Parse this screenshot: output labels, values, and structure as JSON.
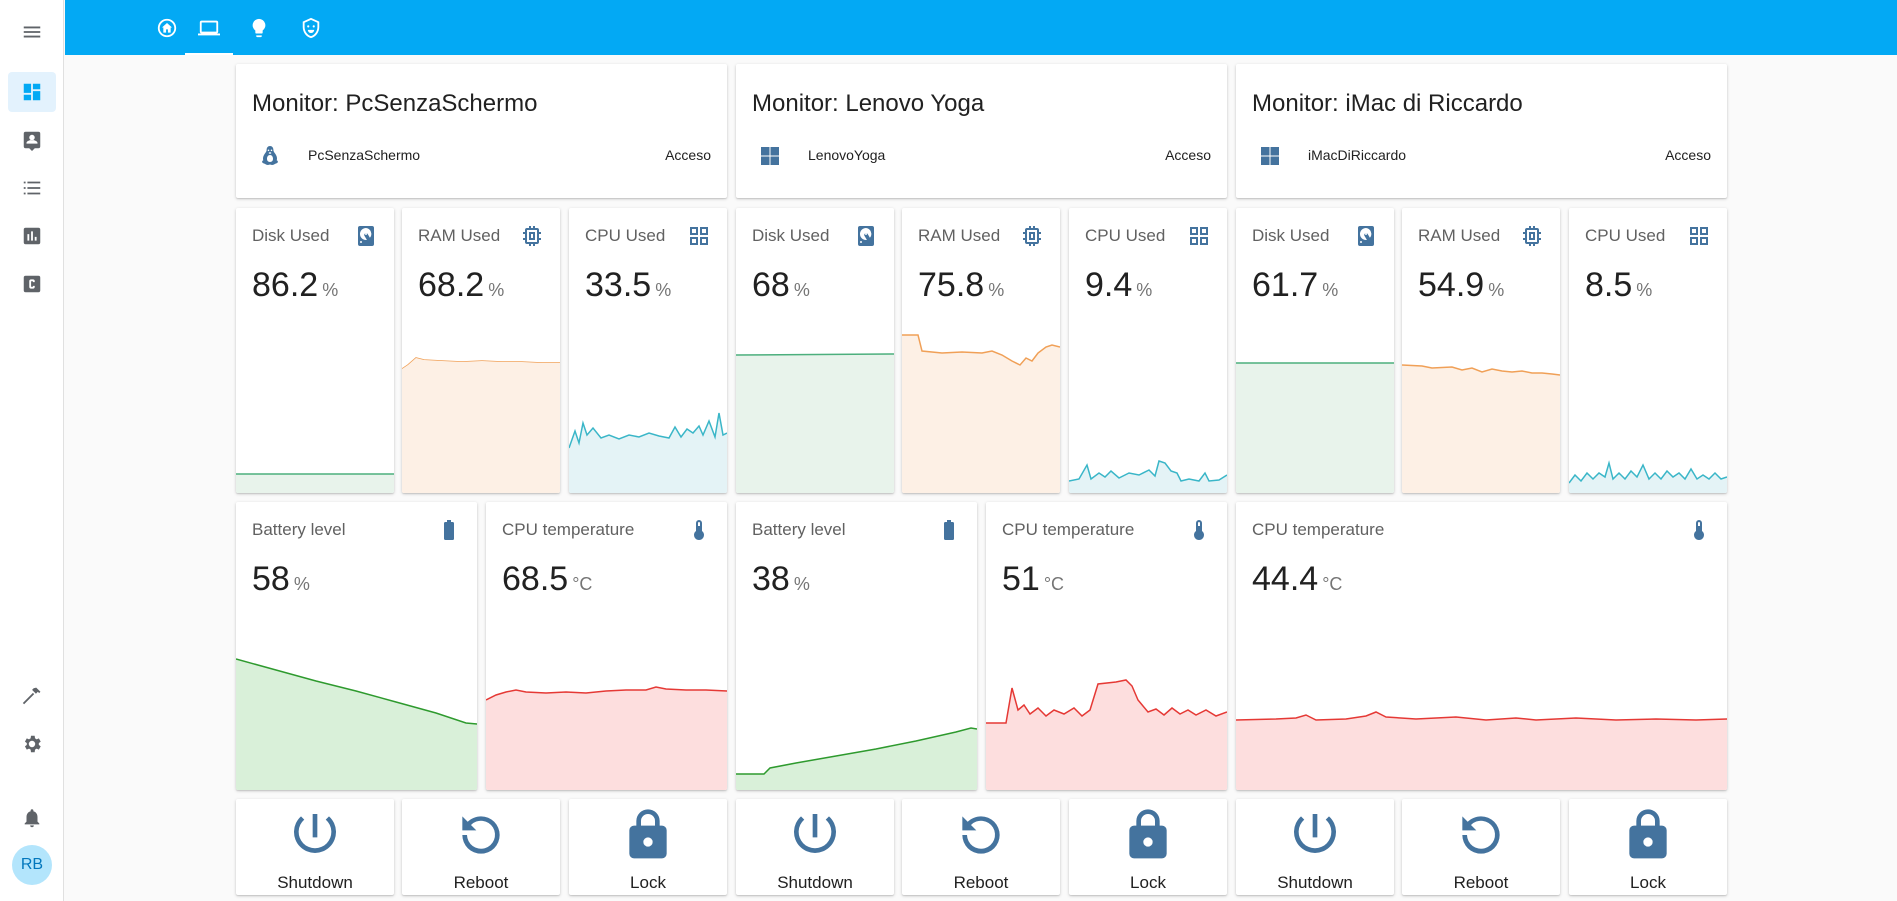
{
  "sidebar": {
    "items": [
      {
        "name": "menu-icon"
      },
      {
        "name": "dashboard-icon"
      },
      {
        "name": "map-icon"
      },
      {
        "name": "logbook-icon"
      },
      {
        "name": "history-icon"
      },
      {
        "name": "code-icon"
      },
      {
        "name": "hammer-icon"
      },
      {
        "name": "gear-icon"
      },
      {
        "name": "bell-icon"
      }
    ],
    "avatar": "RB"
  },
  "tabs": [
    "home-icon",
    "laptop-icon",
    "lightbulb-icon",
    "shield-icon"
  ],
  "monitors": [
    {
      "title": "Monitor: PcSenzaSchermo",
      "os_icon": "linux-icon",
      "entity": "PcSenzaSchermo",
      "state": "Acceso",
      "disk": {
        "name": "Disk Used",
        "value": "86.2",
        "unit": "%"
      },
      "ram": {
        "name": "RAM Used",
        "value": "68.2",
        "unit": "%"
      },
      "cpu": {
        "name": "CPU Used",
        "value": "33.5",
        "unit": "%"
      },
      "battery": {
        "name": "Battery level",
        "value": "58",
        "unit": "%"
      },
      "temp": {
        "name": "CPU temperature",
        "value": "68.5",
        "unit": "°C"
      }
    },
    {
      "title": "Monitor: Lenovo Yoga",
      "os_icon": "windows-icon",
      "entity": "LenovoYoga",
      "state": "Acceso",
      "disk": {
        "name": "Disk Used",
        "value": "68",
        "unit": "%"
      },
      "ram": {
        "name": "RAM Used",
        "value": "75.8",
        "unit": "%"
      },
      "cpu": {
        "name": "CPU Used",
        "value": "9.4",
        "unit": "%"
      },
      "battery": {
        "name": "Battery level",
        "value": "38",
        "unit": "%"
      },
      "temp": {
        "name": "CPU temperature",
        "value": "51",
        "unit": "°C"
      }
    },
    {
      "title": "Monitor: iMac di Riccardo",
      "os_icon": "windows-icon",
      "entity": "iMacDiRiccardo",
      "state": "Acceso",
      "disk": {
        "name": "Disk Used",
        "value": "61.7",
        "unit": "%"
      },
      "ram": {
        "name": "RAM Used",
        "value": "54.9",
        "unit": "%"
      },
      "cpu": {
        "name": "CPU Used",
        "value": "8.5",
        "unit": "%"
      },
      "temp": {
        "name": "CPU temperature",
        "value": "44.4",
        "unit": "°C"
      }
    }
  ],
  "buttons": {
    "shutdown": "Shutdown",
    "reboot": "Reboot",
    "lock": "Lock"
  },
  "colors": {
    "topbar": "#03a9f4",
    "icon": "#44739e",
    "disk": "#4caf7d",
    "ram": "#f0a057",
    "cpu": "#3ab6c8",
    "battery": "#2e9a2e",
    "temp": "#e53935"
  }
}
